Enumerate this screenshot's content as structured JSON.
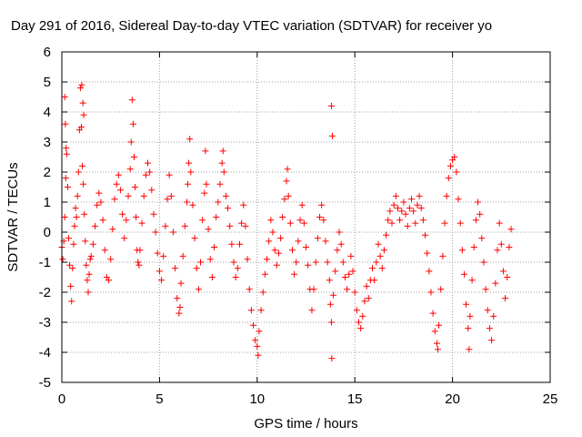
{
  "chart_data": {
    "type": "scatter",
    "title": "Day 291 of 2016, Sidereal Day-to-day VTEC variation (SDTVAR) for receiver yo",
    "xlabel": "GPS time / hours",
    "ylabel": "SDTVAR / TECUs",
    "xlim": [
      0,
      25
    ],
    "ylim": [
      -5,
      6
    ],
    "xticks": [
      0,
      5,
      10,
      15,
      20,
      25
    ],
    "yticks": [
      -5,
      -4,
      -3,
      -2,
      -1,
      0,
      1,
      2,
      3,
      4,
      5,
      6
    ],
    "grid": true,
    "marker": "+",
    "series_color": "#ff0000",
    "series": [
      {
        "name": "SDTVAR",
        "points": [
          [
            0.0,
            -0.5
          ],
          [
            0.05,
            -0.9
          ],
          [
            0.1,
            -0.3
          ],
          [
            0.15,
            0.5
          ],
          [
            0.2,
            1.8
          ],
          [
            0.25,
            2.6
          ],
          [
            0.3,
            1.5
          ],
          [
            0.35,
            -0.2
          ],
          [
            0.4,
            -1.1
          ],
          [
            0.45,
            -1.8
          ],
          [
            0.5,
            -2.3
          ],
          [
            0.55,
            -1.2
          ],
          [
            0.6,
            -0.4
          ],
          [
            0.65,
            0.2
          ],
          [
            0.7,
            0.8
          ],
          [
            0.75,
            0.5
          ],
          [
            0.8,
            1.2
          ],
          [
            0.85,
            2.0
          ],
          [
            0.9,
            3.4
          ],
          [
            0.95,
            4.8
          ],
          [
            1.0,
            3.5
          ],
          [
            1.05,
            2.2
          ],
          [
            1.1,
            1.6
          ],
          [
            1.15,
            0.6
          ],
          [
            1.2,
            -0.3
          ],
          [
            1.25,
            -1.1
          ],
          [
            1.3,
            -1.6
          ],
          [
            1.35,
            -2.0
          ],
          [
            1.4,
            -1.4
          ],
          [
            1.45,
            -0.9
          ],
          [
            0.15,
            4.5
          ],
          [
            0.18,
            3.6
          ],
          [
            0.22,
            2.8
          ],
          [
            1.02,
            4.9
          ],
          [
            1.08,
            4.3
          ],
          [
            1.12,
            3.9
          ],
          [
            1.5,
            -0.8
          ],
          [
            1.6,
            -0.4
          ],
          [
            1.7,
            0.2
          ],
          [
            1.8,
            0.9
          ],
          [
            1.9,
            1.3
          ],
          [
            2.0,
            1.0
          ],
          [
            2.1,
            0.4
          ],
          [
            2.2,
            -0.6
          ],
          [
            2.3,
            -1.5
          ],
          [
            2.4,
            -1.6
          ],
          [
            2.5,
            -0.9
          ],
          [
            2.6,
            0.1
          ],
          [
            2.7,
            1.1
          ],
          [
            2.8,
            1.6
          ],
          [
            2.9,
            1.9
          ],
          [
            3.0,
            1.4
          ],
          [
            3.1,
            0.6
          ],
          [
            3.2,
            -0.2
          ],
          [
            3.3,
            0.4
          ],
          [
            3.4,
            1.2
          ],
          [
            3.5,
            2.1
          ],
          [
            3.55,
            3.0
          ],
          [
            3.6,
            4.4
          ],
          [
            3.65,
            3.6
          ],
          [
            3.7,
            2.5
          ],
          [
            3.75,
            1.5
          ],
          [
            3.8,
            0.5
          ],
          [
            3.85,
            -0.6
          ],
          [
            3.9,
            -1.0
          ],
          [
            3.95,
            -1.1
          ],
          [
            4.0,
            -0.6
          ],
          [
            4.1,
            0.3
          ],
          [
            4.2,
            1.2
          ],
          [
            4.3,
            1.9
          ],
          [
            4.4,
            2.3
          ],
          [
            4.5,
            2.0
          ],
          [
            4.6,
            1.4
          ],
          [
            4.7,
            0.6
          ],
          [
            4.8,
            0.0
          ],
          [
            4.9,
            -0.7
          ],
          [
            5.0,
            -1.3
          ],
          [
            5.1,
            -1.6
          ],
          [
            5.2,
            -0.8
          ],
          [
            5.3,
            0.2
          ],
          [
            5.4,
            1.1
          ],
          [
            5.5,
            1.9
          ],
          [
            5.6,
            1.2
          ],
          [
            5.7,
            0.0
          ],
          [
            5.8,
            -1.2
          ],
          [
            5.9,
            -2.2
          ],
          [
            6.0,
            -2.7
          ],
          [
            6.05,
            -2.5
          ],
          [
            6.1,
            -1.7
          ],
          [
            6.2,
            -0.8
          ],
          [
            6.3,
            0.2
          ],
          [
            6.4,
            1.0
          ],
          [
            6.45,
            1.6
          ],
          [
            6.5,
            2.3
          ],
          [
            6.55,
            3.1
          ],
          [
            6.6,
            2.0
          ],
          [
            6.7,
            0.9
          ],
          [
            6.8,
            -0.2
          ],
          [
            6.9,
            -1.2
          ],
          [
            7.0,
            -1.9
          ],
          [
            7.1,
            -1.0
          ],
          [
            7.2,
            0.4
          ],
          [
            7.3,
            1.3
          ],
          [
            7.35,
            2.7
          ],
          [
            7.4,
            1.6
          ],
          [
            7.5,
            0.1
          ],
          [
            7.6,
            -0.9
          ],
          [
            7.7,
            -1.5
          ],
          [
            7.8,
            -0.5
          ],
          [
            7.9,
            0.5
          ],
          [
            8.0,
            1.0
          ],
          [
            8.1,
            1.6
          ],
          [
            8.2,
            2.3
          ],
          [
            8.25,
            2.7
          ],
          [
            8.3,
            2.0
          ],
          [
            8.4,
            1.2
          ],
          [
            8.5,
            0.8
          ],
          [
            8.6,
            0.2
          ],
          [
            8.7,
            -0.4
          ],
          [
            8.8,
            -1.0
          ],
          [
            8.9,
            -1.5
          ],
          [
            9.0,
            -1.2
          ],
          [
            9.1,
            -0.4
          ],
          [
            9.2,
            0.3
          ],
          [
            9.3,
            0.9
          ],
          [
            9.4,
            0.2
          ],
          [
            9.5,
            -0.9
          ],
          [
            9.6,
            -1.9
          ],
          [
            9.7,
            -2.6
          ],
          [
            9.8,
            -3.1
          ],
          [
            9.9,
            -3.6
          ],
          [
            10.0,
            -3.8
          ],
          [
            10.05,
            -4.1
          ],
          [
            10.1,
            -3.3
          ],
          [
            10.2,
            -2.6
          ],
          [
            10.3,
            -2.0
          ],
          [
            10.4,
            -1.4
          ],
          [
            10.5,
            -0.9
          ],
          [
            10.6,
            -0.3
          ],
          [
            10.7,
            0.4
          ],
          [
            10.8,
            0.0
          ],
          [
            10.9,
            -0.6
          ],
          [
            11.0,
            -1.1
          ],
          [
            11.1,
            -0.7
          ],
          [
            11.2,
            -0.2
          ],
          [
            11.3,
            0.5
          ],
          [
            11.4,
            1.1
          ],
          [
            11.5,
            1.7
          ],
          [
            11.55,
            2.1
          ],
          [
            11.6,
            1.2
          ],
          [
            11.7,
            0.3
          ],
          [
            11.8,
            -0.6
          ],
          [
            11.9,
            -1.4
          ],
          [
            12.0,
            -1.0
          ],
          [
            12.1,
            -0.3
          ],
          [
            12.2,
            0.4
          ],
          [
            12.3,
            0.9
          ],
          [
            12.4,
            0.3
          ],
          [
            12.5,
            -0.5
          ],
          [
            12.6,
            -1.1
          ],
          [
            12.7,
            -1.9
          ],
          [
            12.8,
            -2.6
          ],
          [
            12.9,
            -1.9
          ],
          [
            13.0,
            -1.0
          ],
          [
            13.1,
            -0.2
          ],
          [
            13.2,
            0.5
          ],
          [
            13.3,
            0.9
          ],
          [
            13.4,
            0.4
          ],
          [
            13.5,
            -0.3
          ],
          [
            13.6,
            -1.0
          ],
          [
            13.7,
            -1.6
          ],
          [
            13.75,
            -2.4
          ],
          [
            13.8,
            -3.0
          ],
          [
            13.82,
            -4.2
          ],
          [
            13.85,
            3.2
          ],
          [
            13.8,
            4.2
          ],
          [
            13.9,
            -2.1
          ],
          [
            14.0,
            -1.3
          ],
          [
            14.1,
            -0.6
          ],
          [
            14.2,
            0.0
          ],
          [
            14.3,
            -0.4
          ],
          [
            14.4,
            -1.0
          ],
          [
            14.5,
            -1.5
          ],
          [
            14.6,
            -1.9
          ],
          [
            14.7,
            -1.4
          ],
          [
            14.8,
            -0.8
          ],
          [
            14.9,
            -1.3
          ],
          [
            15.0,
            -2.0
          ],
          [
            15.1,
            -2.6
          ],
          [
            15.2,
            -3.0
          ],
          [
            15.3,
            -3.2
          ],
          [
            15.4,
            -2.8
          ],
          [
            15.5,
            -2.3
          ],
          [
            15.6,
            -1.8
          ],
          [
            15.7,
            -2.2
          ],
          [
            15.8,
            -1.6
          ],
          [
            15.9,
            -1.2
          ],
          [
            16.0,
            -1.6
          ],
          [
            16.1,
            -1.0
          ],
          [
            16.2,
            -0.4
          ],
          [
            16.3,
            -0.8
          ],
          [
            16.4,
            -1.2
          ],
          [
            16.5,
            -0.6
          ],
          [
            16.6,
            -0.1
          ],
          [
            16.7,
            0.4
          ],
          [
            16.8,
            0.7
          ],
          [
            16.9,
            0.3
          ],
          [
            17.0,
            0.9
          ],
          [
            17.1,
            1.2
          ],
          [
            17.2,
            0.8
          ],
          [
            17.3,
            0.4
          ],
          [
            17.4,
            0.7
          ],
          [
            17.5,
            1.0
          ],
          [
            17.6,
            0.6
          ],
          [
            17.7,
            0.2
          ],
          [
            17.8,
            0.8
          ],
          [
            17.9,
            1.1
          ],
          [
            18.0,
            0.7
          ],
          [
            18.1,
            0.3
          ],
          [
            18.2,
            0.9
          ],
          [
            18.3,
            1.2
          ],
          [
            18.4,
            0.8
          ],
          [
            18.5,
            0.4
          ],
          [
            18.6,
            -0.1
          ],
          [
            18.7,
            -0.7
          ],
          [
            18.8,
            -1.3
          ],
          [
            18.9,
            -2.0
          ],
          [
            19.0,
            -2.7
          ],
          [
            19.1,
            -3.3
          ],
          [
            19.2,
            -3.7
          ],
          [
            19.25,
            -3.9
          ],
          [
            19.3,
            -3.1
          ],
          [
            19.4,
            -1.9
          ],
          [
            19.5,
            -0.8
          ],
          [
            19.6,
            0.3
          ],
          [
            19.7,
            1.2
          ],
          [
            19.8,
            1.8
          ],
          [
            19.9,
            2.2
          ],
          [
            20.0,
            2.4
          ],
          [
            20.1,
            2.5
          ],
          [
            20.2,
            2.0
          ],
          [
            20.3,
            1.1
          ],
          [
            20.4,
            0.3
          ],
          [
            20.5,
            -0.6
          ],
          [
            20.6,
            -1.4
          ],
          [
            20.7,
            -2.4
          ],
          [
            20.8,
            -3.2
          ],
          [
            20.85,
            -3.9
          ],
          [
            20.9,
            -2.8
          ],
          [
            21.0,
            -1.6
          ],
          [
            21.1,
            -0.5
          ],
          [
            21.2,
            0.4
          ],
          [
            21.3,
            1.0
          ],
          [
            21.4,
            0.6
          ],
          [
            21.5,
            -0.2
          ],
          [
            21.6,
            -1.0
          ],
          [
            21.7,
            -1.9
          ],
          [
            21.8,
            -2.6
          ],
          [
            21.9,
            -3.2
          ],
          [
            22.0,
            -3.6
          ],
          [
            22.1,
            -2.8
          ],
          [
            22.2,
            -1.7
          ],
          [
            22.3,
            -0.6
          ],
          [
            22.4,
            0.3
          ],
          [
            22.5,
            -0.4
          ],
          [
            22.6,
            -1.3
          ],
          [
            22.7,
            -2.2
          ],
          [
            22.8,
            -1.5
          ],
          [
            22.9,
            -0.5
          ],
          [
            23.0,
            0.1
          ]
        ]
      }
    ]
  }
}
